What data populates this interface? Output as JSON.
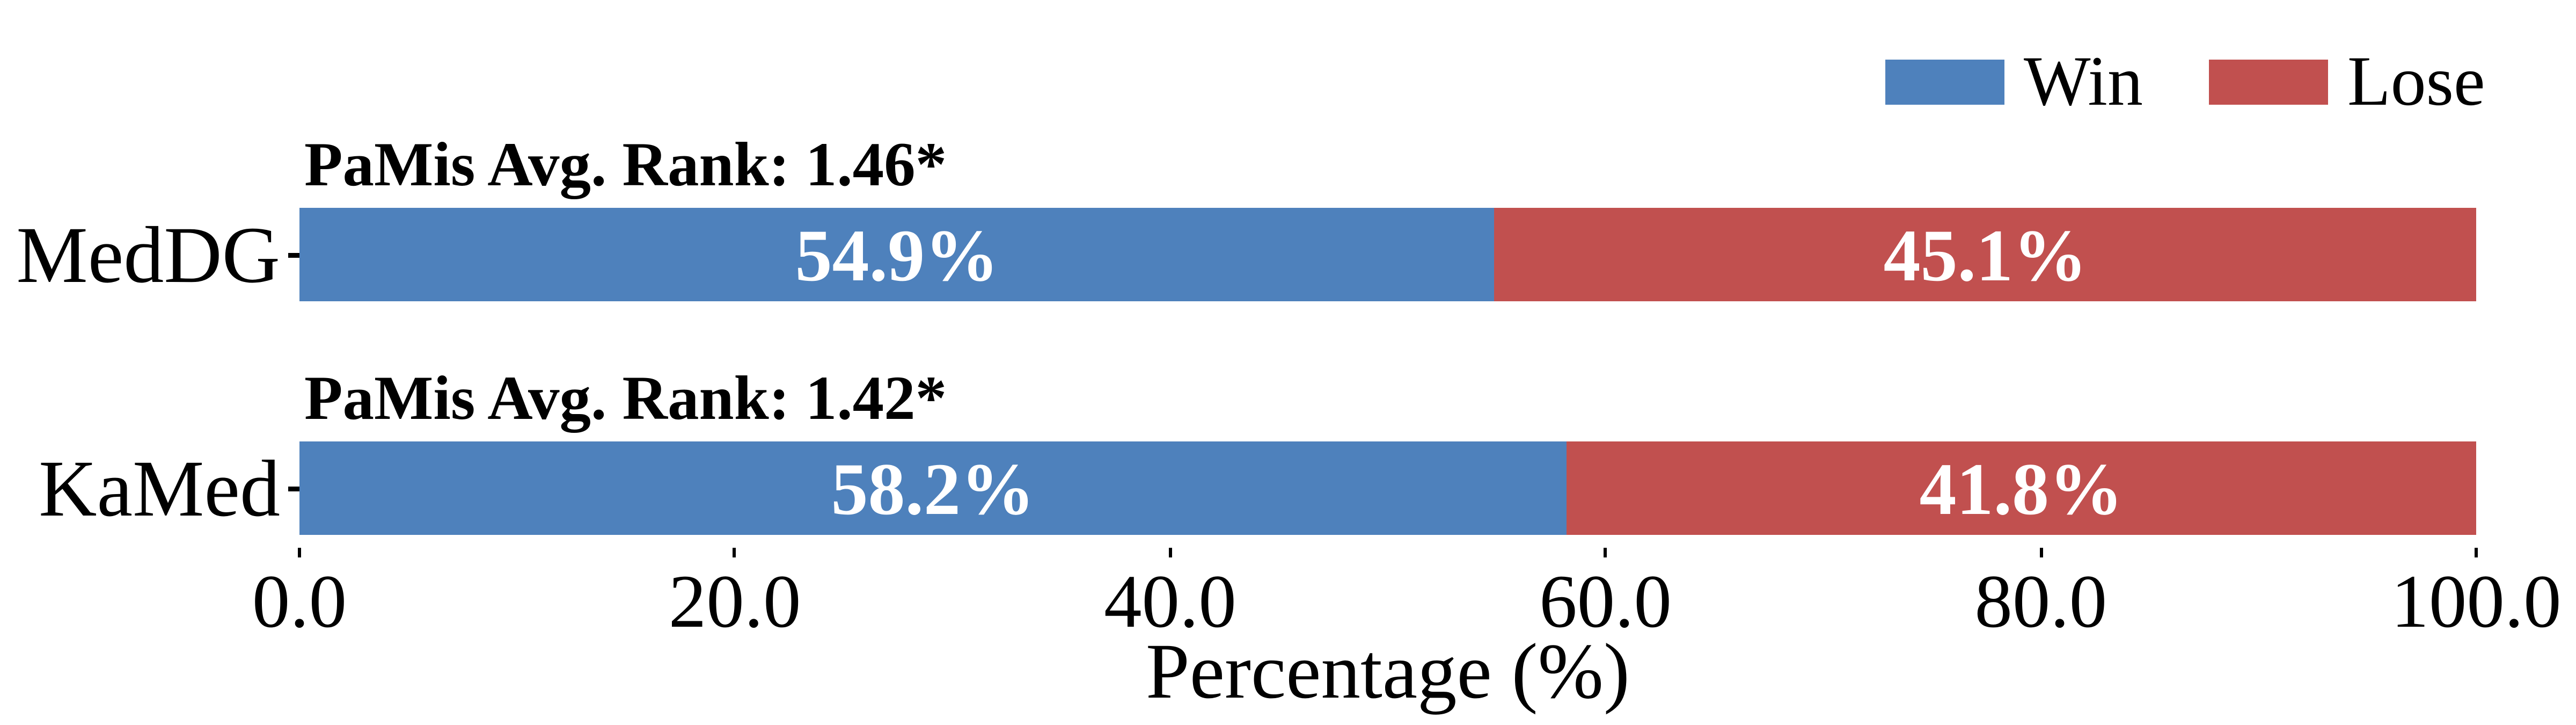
{
  "legend": {
    "items": [
      {
        "label": "Win",
        "color": "#4E81BC"
      },
      {
        "label": "Lose",
        "color": "#C1504F"
      }
    ]
  },
  "chart_data": {
    "type": "bar",
    "stacked": true,
    "orientation": "horizontal",
    "title": "",
    "xlabel": "Percentage (%)",
    "ylabel": "",
    "xlim": [
      0,
      100
    ],
    "grid": false,
    "legend_position": "upper right",
    "categories": [
      "MedDG",
      "KaMed"
    ],
    "series": [
      {
        "name": "Win",
        "color": "#4E81BC",
        "values": [
          54.9,
          58.2
        ]
      },
      {
        "name": "Lose",
        "color": "#C1504F",
        "values": [
          45.1,
          41.8
        ]
      }
    ],
    "bar_labels": [
      [
        "54.9%",
        "45.1%"
      ],
      [
        "58.2%",
        "41.8%"
      ]
    ],
    "annotations": [
      "PaMis Avg. Rank: 1.46*",
      "PaMis Avg. Rank: 1.42*"
    ],
    "x_ticks": [
      0,
      20,
      40,
      60,
      80,
      100
    ],
    "x_tick_labels": [
      "0.0",
      "20.0",
      "40.0",
      "60.0",
      "80.0",
      "100.0"
    ]
  },
  "colors": {
    "background": "#FFFFFF",
    "text": "#000000",
    "bar_label_text": "#FFFFFF"
  }
}
